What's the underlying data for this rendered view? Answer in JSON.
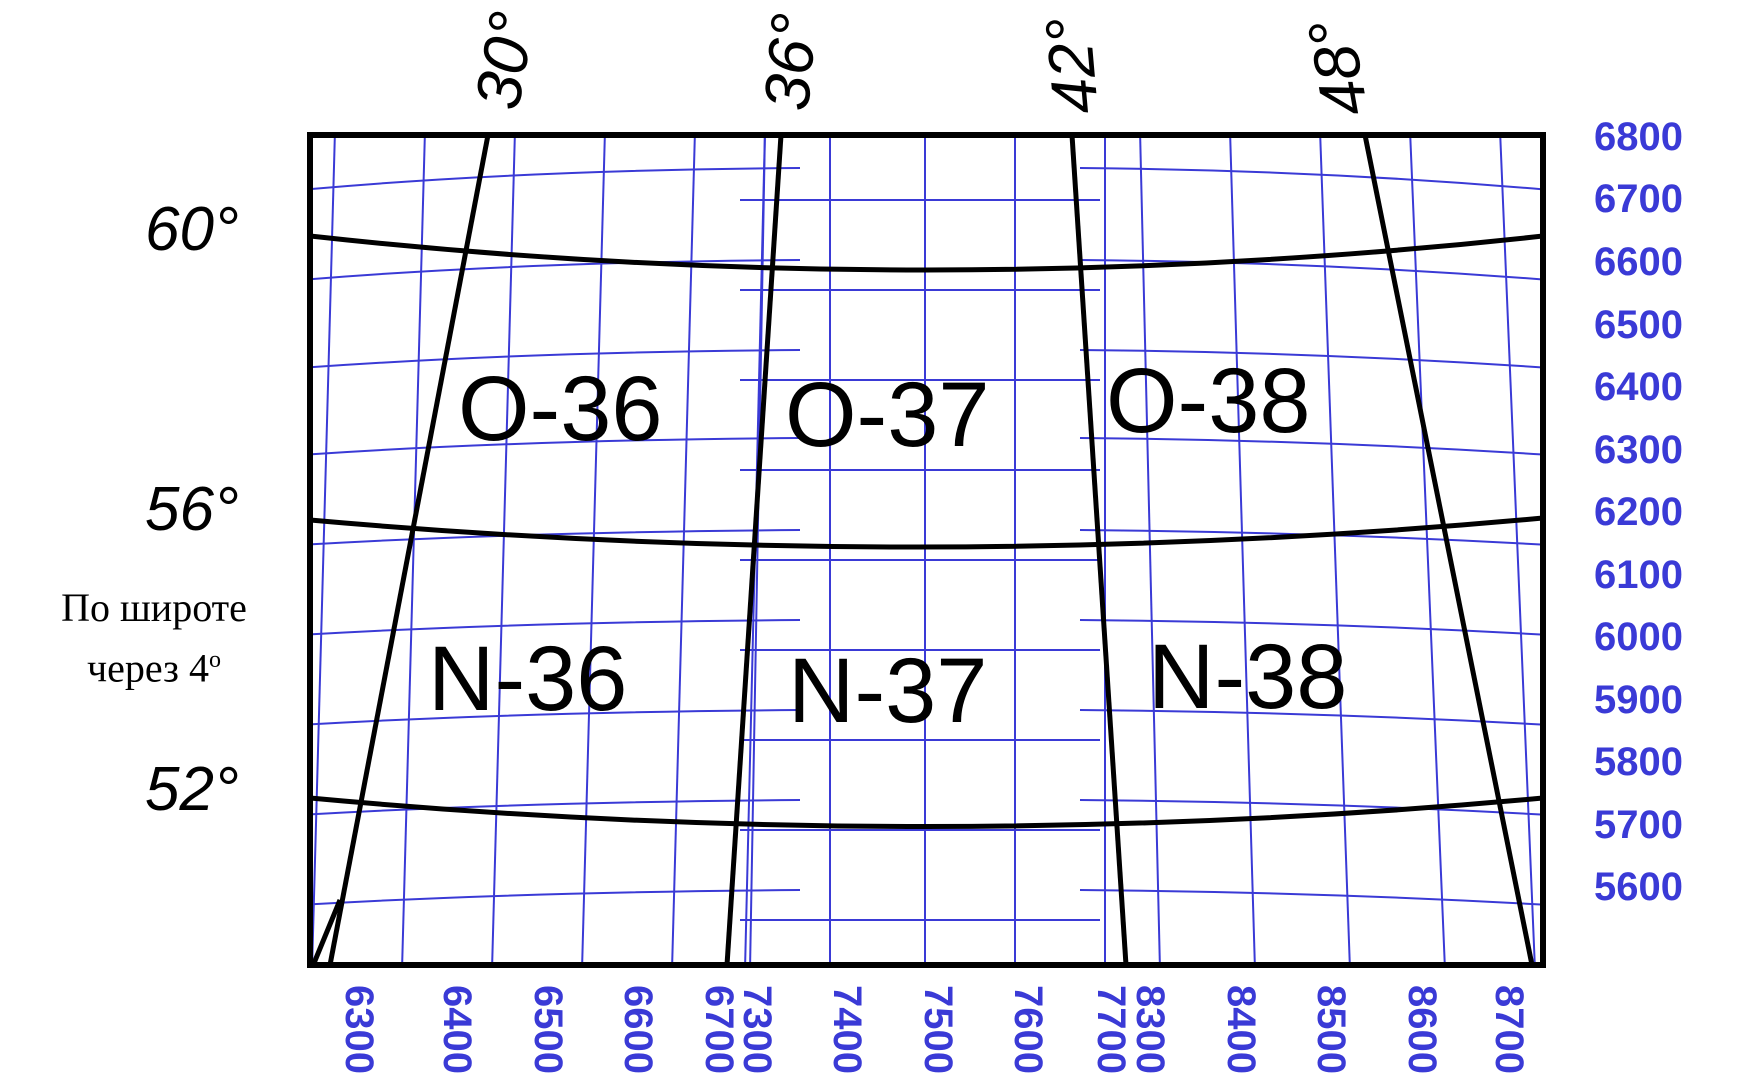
{
  "meridian_labels": [
    "30°",
    "36°",
    "42°",
    "48°"
  ],
  "parallel_labels": [
    "60°",
    "56°",
    "52°"
  ],
  "sheets": [
    "O-36",
    "O-37",
    "O-38",
    "N-36",
    "N-37",
    "N-38"
  ],
  "right_km_labels": [
    "6800",
    "6700",
    "6600",
    "6500",
    "6400",
    "6300",
    "6200",
    "6100",
    "6000",
    "5900",
    "5800",
    "5700",
    "5600"
  ],
  "bottom_km_labels": [
    "6300",
    "6400",
    "6500",
    "6600",
    "6700",
    "7300",
    "7400",
    "7500",
    "7600",
    "7700",
    "8300",
    "8400",
    "8500",
    "8600",
    "8700"
  ],
  "note": {
    "line1": "По широте",
    "line2": "через 4",
    "degree": "o"
  },
  "colors": {
    "grid": "#3a3ad6",
    "lines": "#000000"
  }
}
